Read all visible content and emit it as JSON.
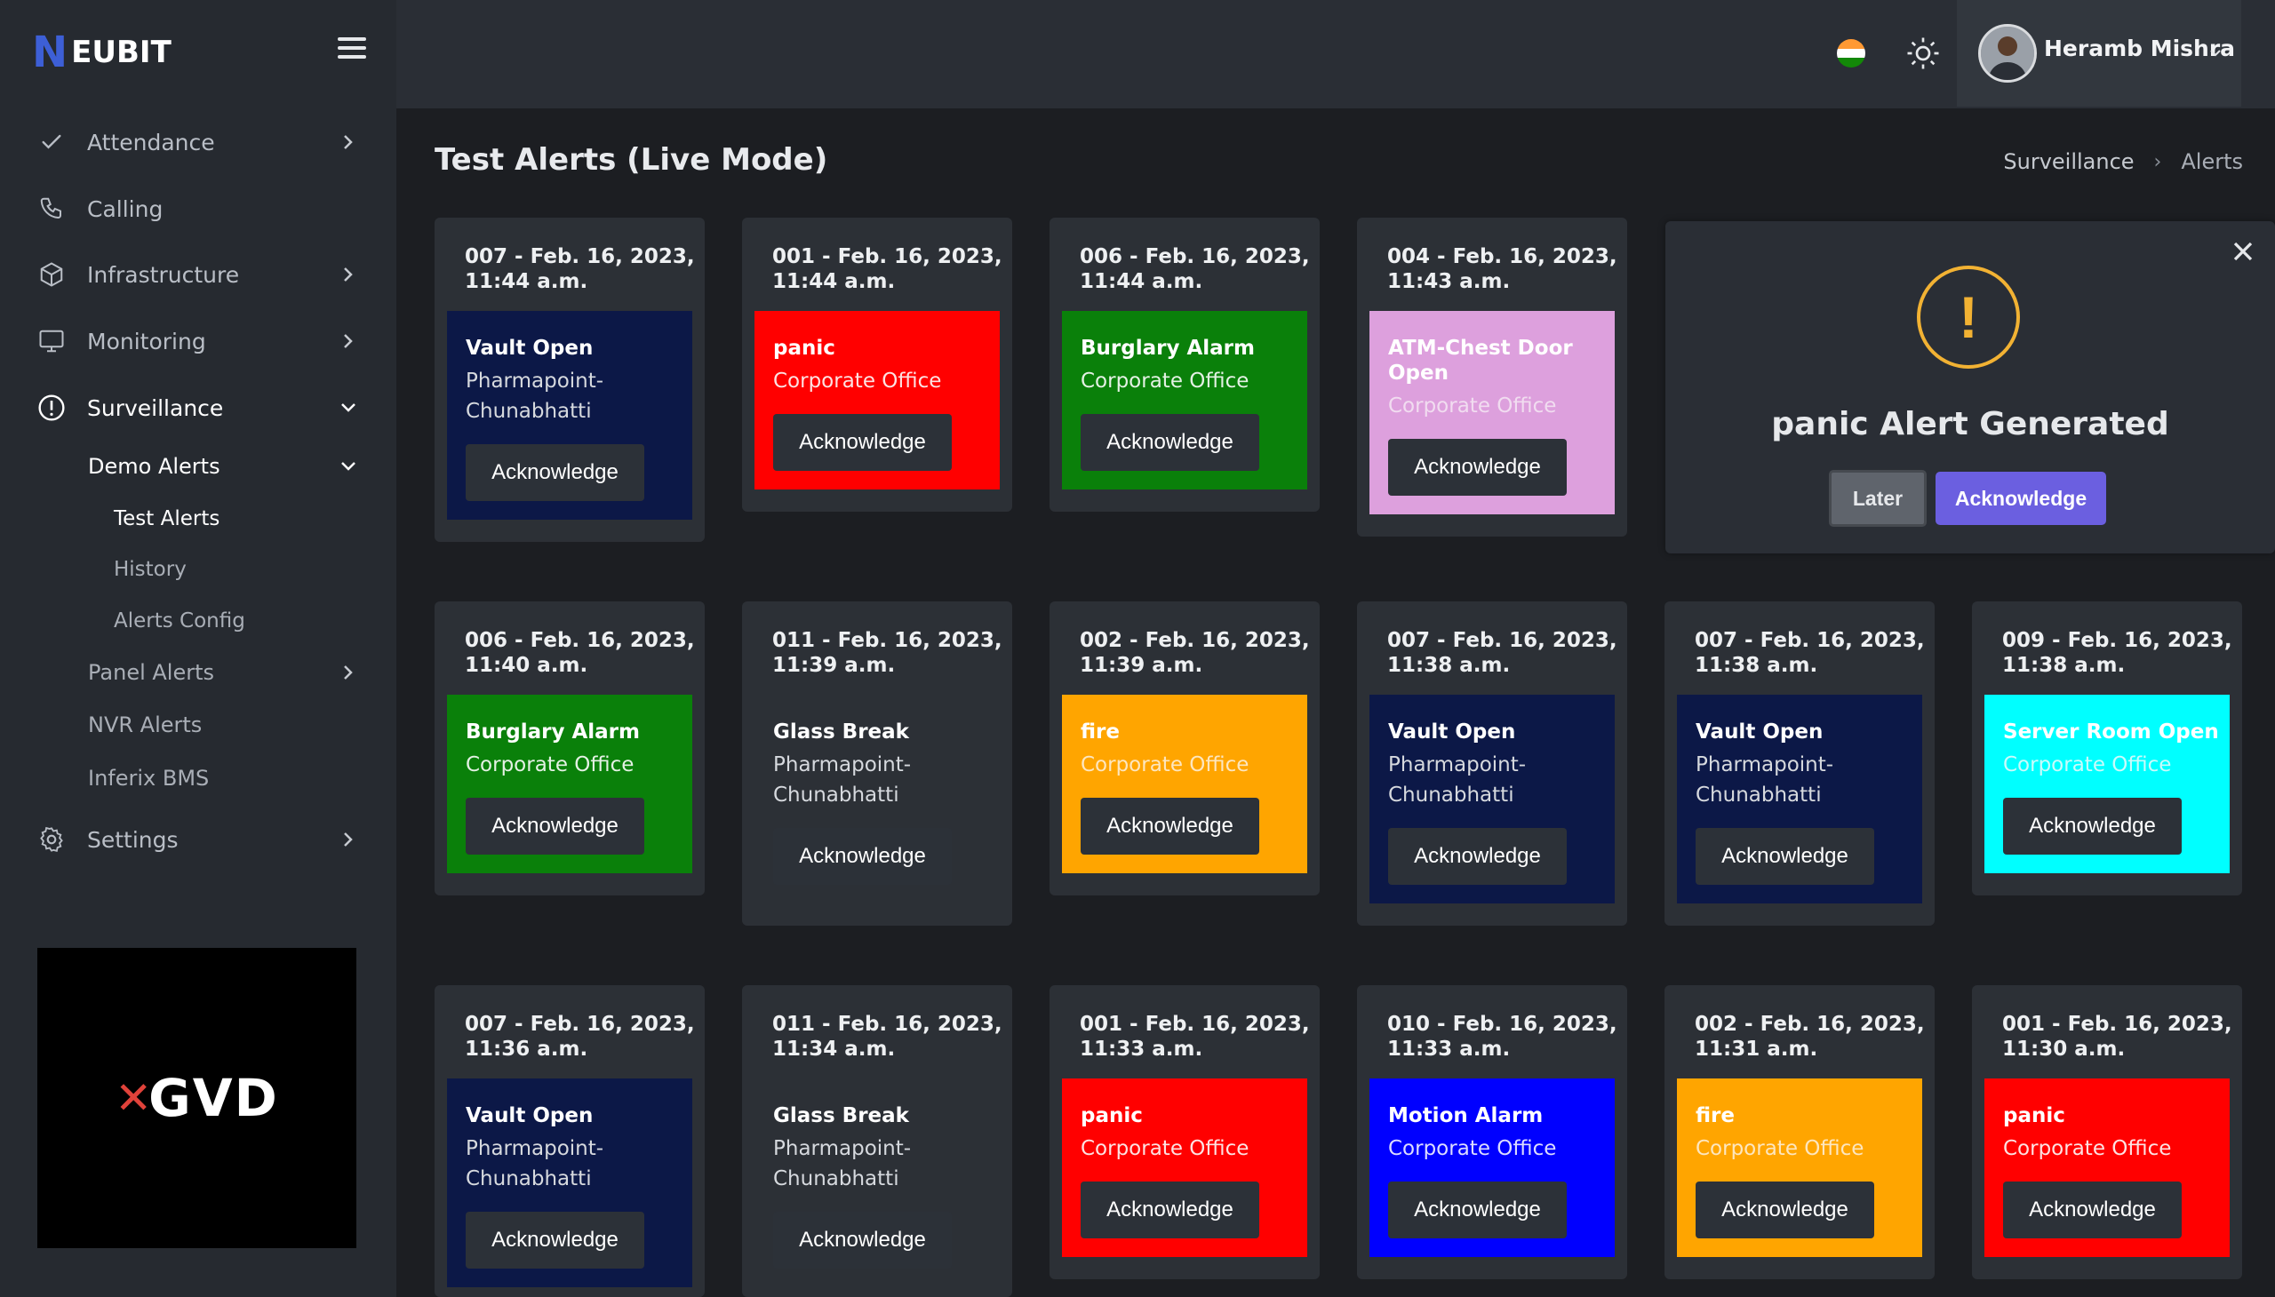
{
  "app": {
    "brand_mark": "N",
    "brand_name": "EUBIT"
  },
  "sidebar": {
    "items": [
      {
        "label": "Attendance"
      },
      {
        "label": "Calling"
      },
      {
        "label": "Infrastructure"
      },
      {
        "label": "Monitoring"
      },
      {
        "label": "Surveillance"
      },
      {
        "label": "Settings"
      }
    ],
    "surveillance_sub": [
      {
        "label": "Demo Alerts"
      },
      {
        "label": "Test Alerts"
      },
      {
        "label": "History"
      },
      {
        "label": "Alerts Config"
      },
      {
        "label": "Panel Alerts"
      },
      {
        "label": "NVR Alerts"
      },
      {
        "label": "Inferix BMS"
      }
    ],
    "logo_text": "GVD"
  },
  "header": {
    "user_name": "Heramb Mishra"
  },
  "page": {
    "title": "Test Alerts (Live Mode)",
    "breadcrumb": [
      "Surveillance",
      "Alerts"
    ]
  },
  "ack_label": "Acknowledge",
  "alerts": [
    {
      "header": "007 - Feb. 16, 2023, 11:44 a.m.",
      "type": "Vault Open",
      "location": "Pharmapoint-Chunabhatti",
      "bg": "#0c1847",
      "type_color": "#ffffff",
      "loc_color": "#d6d9de"
    },
    {
      "header": "001 - Feb. 16, 2023, 11:44 a.m.",
      "type": "panic",
      "location": "Corporate Office",
      "bg": "#ff0000",
      "type_color": "#ffffff",
      "loc_color": "#fde2e2"
    },
    {
      "header": "006 - Feb. 16, 2023, 11:44 a.m.",
      "type": "Burglary Alarm",
      "location": "Corporate Office",
      "bg": "#0a800a",
      "type_color": "#ffffff",
      "loc_color": "#e4f1e4"
    },
    {
      "header": "004 - Feb. 16, 2023, 11:43 a.m.",
      "type": "ATM-Chest Door Open",
      "location": "Corporate Office",
      "bg": "#dda0dd",
      "type_color": "#ffffff",
      "loc_color": "#f1dcf0"
    },
    {
      "header": "006 - Feb. 16, 2023, 11:40 a.m.",
      "type": "Burglary Alarm",
      "location": "Corporate Office",
      "bg": "#0a800a",
      "type_color": "#ffffff",
      "loc_color": "#e4f1e4"
    },
    {
      "header": "011 - Feb. 16, 2023, 11:39 a.m.",
      "type": "Glass Break",
      "location": "Pharmapoint-Chunabhatti",
      "bg": "#2c3036",
      "type_color": "#ffffff",
      "loc_color": "#d6d9de"
    },
    {
      "header": "002 - Feb. 16, 2023, 11:39 a.m.",
      "type": "fire",
      "location": "Corporate Office",
      "bg": "#ffa500",
      "type_color": "#ffffff",
      "loc_color": "#fde6bf"
    },
    {
      "header": "007 - Feb. 16, 2023, 11:38 a.m.",
      "type": "Vault Open",
      "location": "Pharmapoint-Chunabhatti",
      "bg": "#0c1847",
      "type_color": "#ffffff",
      "loc_color": "#d6d9de"
    },
    {
      "header": "007 - Feb. 16, 2023, 11:38 a.m.",
      "type": "Vault Open",
      "location": "Pharmapoint-Chunabhatti",
      "bg": "#0c1847",
      "type_color": "#ffffff",
      "loc_color": "#d6d9de"
    },
    {
      "header": "009 - Feb. 16, 2023, 11:38 a.m.",
      "type": "Server Room Open",
      "location": "Corporate Office",
      "bg": "#00ffff",
      "type_color": "#ffffff",
      "loc_color": "#c9fbfb"
    },
    {
      "header": "007 - Feb. 16, 2023, 11:36 a.m.",
      "type": "Vault Open",
      "location": "Pharmapoint-Chunabhatti",
      "bg": "#0c1847",
      "type_color": "#ffffff",
      "loc_color": "#d6d9de"
    },
    {
      "header": "011 - Feb. 16, 2023, 11:34 a.m.",
      "type": "Glass Break",
      "location": "Pharmapoint-Chunabhatti",
      "bg": "#2c3036",
      "type_color": "#ffffff",
      "loc_color": "#d6d9de"
    },
    {
      "header": "001 - Feb. 16, 2023, 11:33 a.m.",
      "type": "panic",
      "location": "Corporate Office",
      "bg": "#ff0000",
      "type_color": "#ffffff",
      "loc_color": "#fde2e2"
    },
    {
      "header": "010 - Feb. 16, 2023, 11:33 a.m.",
      "type": "Motion Alarm",
      "location": "Corporate Office",
      "bg": "#0000ff",
      "type_color": "#ffffff",
      "loc_color": "#dcdcff"
    },
    {
      "header": "002 - Feb. 16, 2023, 11:31 a.m.",
      "type": "fire",
      "location": "Corporate Office",
      "bg": "#ffa500",
      "type_color": "#ffffff",
      "loc_color": "#fde6bf"
    },
    {
      "header": "001 - Feb. 16, 2023, 11:30 a.m.",
      "type": "panic",
      "location": "Corporate Office",
      "bg": "#ff0000",
      "type_color": "#ffffff",
      "loc_color": "#fde2e2"
    }
  ],
  "modal": {
    "icon": "!",
    "message": "panic Alert Generated",
    "later_label": "Later",
    "ack_label": "Acknowledge",
    "icon_color": "#f2b233"
  },
  "colors": {
    "accent": "#6b5fe0",
    "brand": "#3d5fd6"
  }
}
